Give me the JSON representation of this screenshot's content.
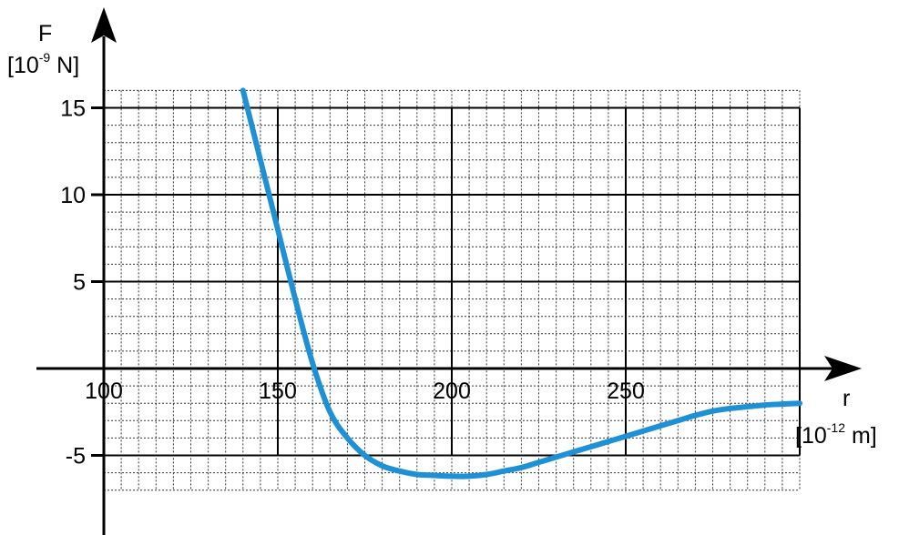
{
  "chart_data": {
    "type": "line",
    "ylabel": {
      "var": "F",
      "open": "[10",
      "exp": "-9",
      "close": " N]"
    },
    "xlabel": {
      "var": "r",
      "open": "[10",
      "exp": "-12",
      "close": " m]"
    },
    "xlim": [
      100,
      300
    ],
    "ylim": [
      -7,
      16
    ],
    "x_ticks": [
      {
        "value": 100,
        "label": "100"
      },
      {
        "value": 150,
        "label": "150"
      },
      {
        "value": 200,
        "label": "200"
      },
      {
        "value": 250,
        "label": "250"
      }
    ],
    "y_ticks": [
      {
        "value": 15,
        "label": "15"
      },
      {
        "value": 10,
        "label": "10"
      },
      {
        "value": 5,
        "label": "5"
      },
      {
        "value": -5,
        "label": "-5"
      }
    ],
    "grid": {
      "major_x": 50,
      "major_y": 5,
      "minor_x": 5,
      "minor_y": 1
    },
    "line_color": "#1e90d6",
    "series": [
      {
        "x": [
          140,
          145,
          150,
          155,
          160,
          165,
          170,
          175,
          180,
          185,
          190,
          195,
          200,
          205,
          210,
          215,
          220,
          225,
          230,
          235,
          240,
          245,
          250,
          255,
          260,
          265,
          270,
          275,
          280,
          285,
          290,
          295,
          300
        ],
        "y": [
          16,
          12,
          8,
          4,
          0.3,
          -2.5,
          -4.0,
          -5.0,
          -5.6,
          -5.9,
          -6.1,
          -6.15,
          -6.2,
          -6.2,
          -6.1,
          -5.9,
          -5.7,
          -5.4,
          -5.1,
          -4.8,
          -4.5,
          -4.2,
          -3.9,
          -3.6,
          -3.3,
          -3.0,
          -2.7,
          -2.45,
          -2.3,
          -2.2,
          -2.1,
          -2.05,
          -2.0
        ]
      }
    ]
  }
}
